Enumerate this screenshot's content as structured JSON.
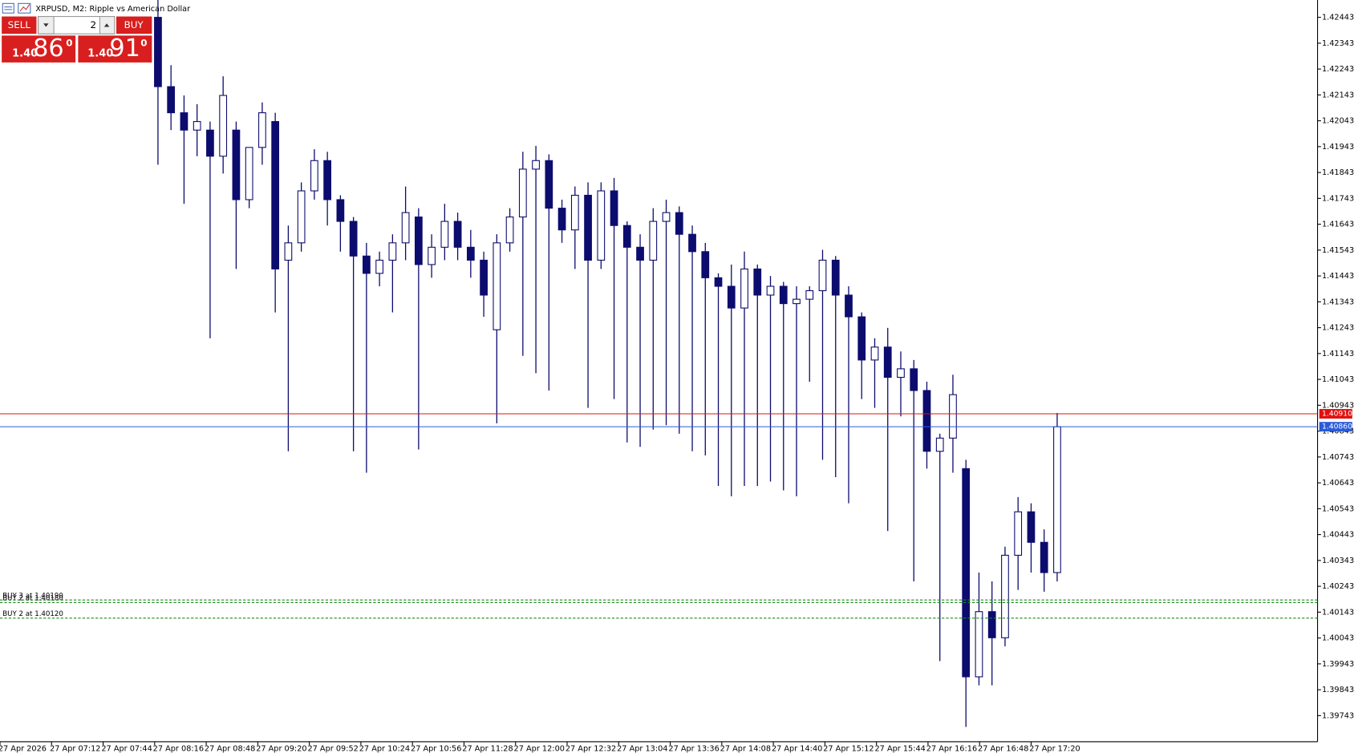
{
  "header": {
    "title": "XRPUSD, M2:  Ripple vs American Dollar"
  },
  "trade_panel": {
    "sell_button": "SELL",
    "buy_button": "BUY",
    "volume": 2,
    "sell_price": {
      "small": "1.40",
      "big": "86",
      "sup": "0"
    },
    "buy_price": {
      "small": "1.40",
      "big": "91",
      "sup": "0"
    }
  },
  "chart_data": {
    "type": "candlestick",
    "color": "#0c0c6e",
    "categories": [
      "27 Apr 2026",
      "27 Apr 07:12",
      "27 Apr 07:44",
      "27 Apr 08:16",
      "27 Apr 08:48",
      "27 Apr 09:20",
      "27 Apr 09:52",
      "27 Apr 10:24",
      "27 Apr 10:56",
      "27 Apr 11:28",
      "27 Apr 12:00",
      "27 Apr 12:32",
      "27 Apr 13:04",
      "27 Apr 13:36",
      "27 Apr 14:08",
      "27 Apr 14:40",
      "27 Apr 15:12",
      "27 Apr 15:44",
      "27 Apr 16:16",
      "27 Apr 16:48",
      "27 Apr 17:20"
    ],
    "ylim": [
      1.39642,
      1.4251
    ],
    "yticks": [
      1.42443,
      1.42343,
      1.42243,
      1.42143,
      1.42043,
      1.41943,
      1.41843,
      1.41743,
      1.41643,
      1.41543,
      1.41443,
      1.41343,
      1.41243,
      1.41143,
      1.41043,
      1.40943,
      1.40843,
      1.40743,
      1.40643,
      1.40543,
      1.40443,
      1.40343,
      1.40243,
      1.40143,
      1.40043,
      1.39943,
      1.39843,
      1.39743
    ],
    "ohlc": [
      [
        1.42443,
        1.4251,
        1.41873,
        1.42175
      ],
      [
        1.42175,
        1.42258,
        1.42007,
        1.42074
      ],
      [
        1.42074,
        1.42141,
        1.41722,
        1.42007
      ],
      [
        1.42007,
        1.42107,
        1.41906,
        1.4204
      ],
      [
        1.42007,
        1.4204,
        1.41202,
        1.41906
      ],
      [
        1.41906,
        1.42215,
        1.41839,
        1.42141
      ],
      [
        1.42007,
        1.4204,
        1.4147,
        1.41738
      ],
      [
        1.41738,
        1.4194,
        1.41705,
        1.4194
      ],
      [
        1.4194,
        1.42114,
        1.41873,
        1.42074
      ],
      [
        1.4204,
        1.42074,
        1.41302,
        1.4147
      ],
      [
        1.41504,
        1.41638,
        1.40765,
        1.41571
      ],
      [
        1.41571,
        1.41805,
        1.41537,
        1.41772
      ],
      [
        1.41772,
        1.41933,
        1.41738,
        1.41889
      ],
      [
        1.41889,
        1.41923,
        1.41638,
        1.41738
      ],
      [
        1.41738,
        1.41755,
        1.41537,
        1.41654
      ],
      [
        1.41654,
        1.41671,
        1.40765,
        1.4152
      ],
      [
        1.4152,
        1.41571,
        1.40682,
        1.41453
      ],
      [
        1.41453,
        1.41537,
        1.41403,
        1.41504
      ],
      [
        1.41504,
        1.41604,
        1.41302,
        1.41571
      ],
      [
        1.41571,
        1.41789,
        1.41504,
        1.41688
      ],
      [
        1.41671,
        1.41705,
        1.40772,
        1.41487
      ],
      [
        1.41487,
        1.41604,
        1.41436,
        1.41554
      ],
      [
        1.41554,
        1.41722,
        1.41504,
        1.41654
      ],
      [
        1.41654,
        1.41688,
        1.41504,
        1.41554
      ],
      [
        1.41554,
        1.41621,
        1.41436,
        1.41504
      ],
      [
        1.41504,
        1.41537,
        1.41285,
        1.41369
      ],
      [
        1.41235,
        1.41604,
        1.40873,
        1.41571
      ],
      [
        1.41571,
        1.41705,
        1.41537,
        1.41671
      ],
      [
        1.41671,
        1.41923,
        1.41134,
        1.41856
      ],
      [
        1.41856,
        1.41946,
        1.41067,
        1.41889
      ],
      [
        1.41889,
        1.41913,
        1.41,
        1.41705
      ],
      [
        1.41705,
        1.41738,
        1.41571,
        1.41621
      ],
      [
        1.41621,
        1.41789,
        1.4147,
        1.41755
      ],
      [
        1.41755,
        1.41805,
        1.40933,
        1.41504
      ],
      [
        1.41504,
        1.41805,
        1.4147,
        1.41772
      ],
      [
        1.41772,
        1.41822,
        1.40967,
        1.41638
      ],
      [
        1.41638,
        1.41654,
        1.40799,
        1.41554
      ],
      [
        1.41554,
        1.41604,
        1.40782,
        1.41504
      ],
      [
        1.41504,
        1.41705,
        1.40849,
        1.41654
      ],
      [
        1.41654,
        1.41738,
        1.40866,
        1.41688
      ],
      [
        1.41688,
        1.41712,
        1.40833,
        1.41604
      ],
      [
        1.41604,
        1.41638,
        1.40765,
        1.41537
      ],
      [
        1.41537,
        1.41571,
        1.40749,
        1.41436
      ],
      [
        1.41436,
        1.41453,
        1.40631,
        1.41403
      ],
      [
        1.41403,
        1.41487,
        1.40591,
        1.41319
      ],
      [
        1.41319,
        1.41537,
        1.40631,
        1.4147
      ],
      [
        1.4147,
        1.41487,
        1.40631,
        1.41369
      ],
      [
        1.41369,
        1.41443,
        1.40648,
        1.41403
      ],
      [
        1.41403,
        1.4142,
        1.40614,
        1.41336
      ],
      [
        1.41336,
        1.41403,
        1.40591,
        1.41353
      ],
      [
        1.41353,
        1.41403,
        1.41034,
        1.41386
      ],
      [
        1.41386,
        1.41544,
        1.40732,
        1.41504
      ],
      [
        1.41504,
        1.4152,
        1.40665,
        1.41369
      ],
      [
        1.41369,
        1.41403,
        1.40564,
        1.41285
      ],
      [
        1.41285,
        1.41302,
        1.40967,
        1.41118
      ],
      [
        1.41118,
        1.41202,
        1.40933,
        1.41168
      ],
      [
        1.41168,
        1.41242,
        1.40457,
        1.41051
      ],
      [
        1.41051,
        1.41151,
        1.409,
        1.41084
      ],
      [
        1.41084,
        1.41118,
        1.40262,
        1.41
      ],
      [
        1.41,
        1.41034,
        1.40698,
        1.40765
      ],
      [
        1.40765,
        1.40833,
        1.39954,
        1.40816
      ],
      [
        1.40816,
        1.41061,
        1.40682,
        1.40984
      ],
      [
        1.40698,
        1.40732,
        1.39699,
        1.39893
      ],
      [
        1.39893,
        1.40296,
        1.3986,
        1.40145
      ],
      [
        1.40145,
        1.40262,
        1.3986,
        1.40044
      ],
      [
        1.40044,
        1.40396,
        1.40011,
        1.40363
      ],
      [
        1.40363,
        1.40588,
        1.40229,
        1.40531
      ],
      [
        1.40531,
        1.40564,
        1.40296,
        1.40413
      ],
      [
        1.40413,
        1.40463,
        1.40222,
        1.40296
      ],
      [
        1.40296,
        1.40913,
        1.40262,
        1.4086
      ]
    ],
    "ask": {
      "value": 1.4091,
      "label": "1.40910",
      "color": "#e01010"
    },
    "bid": {
      "value": 1.4086,
      "label": "1.40860",
      "color": "#2a5bd7"
    },
    "orders": [
      {
        "label": "BUY 3 at 1.40190",
        "price": 1.4019
      },
      {
        "label": "BUY 2 at 1.40180",
        "price": 1.4018
      },
      {
        "label": "BUY 2 at 1.40120",
        "price": 1.4012
      }
    ],
    "order_color": "#1a8a1a"
  }
}
